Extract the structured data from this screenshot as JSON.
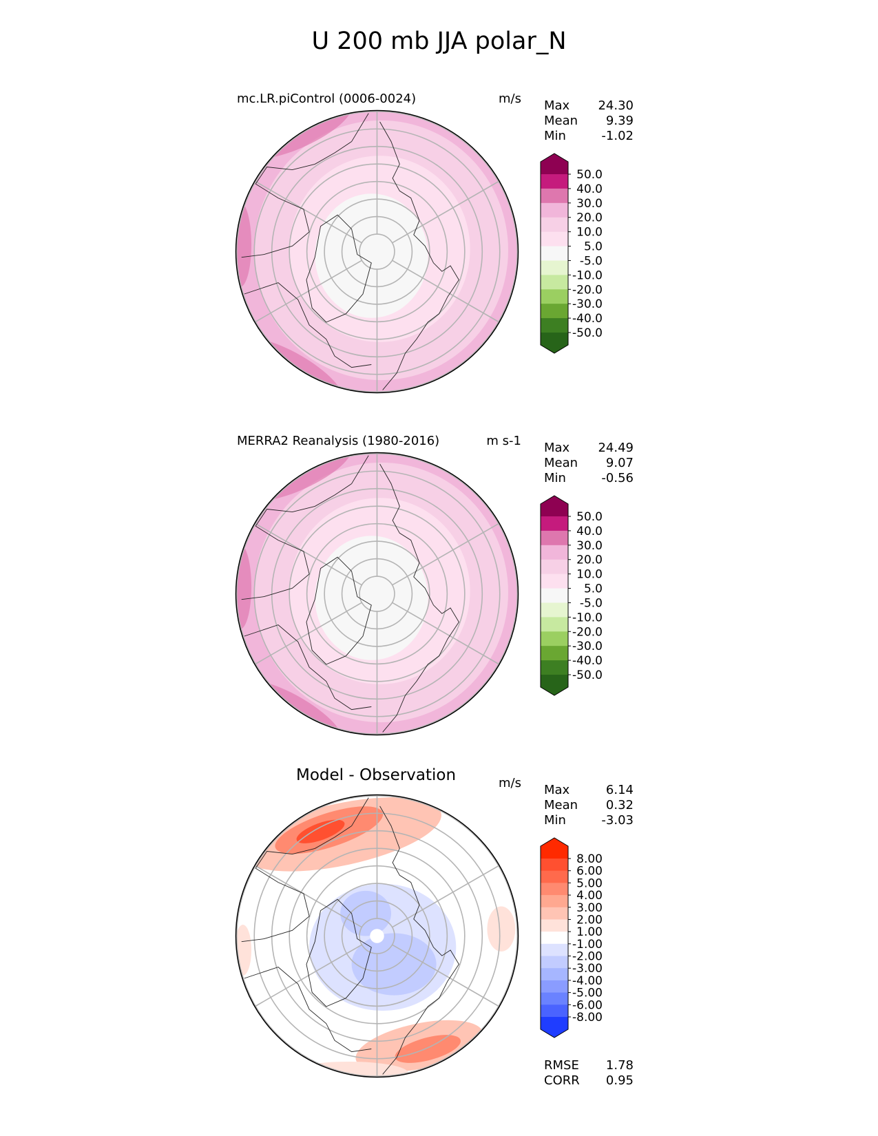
{
  "title": "U 200 mb JJA polar_N",
  "chart_data": [
    {
      "type": "heatmap",
      "projection": "north polar stereographic",
      "title": "mc.LR.piControl (0006-0024)",
      "units": "m/s",
      "stats": {
        "max": "24.30",
        "mean": "9.39",
        "min": "-1.02"
      },
      "colorbar": {
        "levels": [
          "50.0",
          "40.0",
          "30.0",
          "20.0",
          "10.0",
          "5.0",
          "-5.0",
          "-10.0",
          "-20.0",
          "-30.0",
          "-40.0",
          "-50.0"
        ],
        "colors": [
          "#8e0152",
          "#c51b7d",
          "#de77ae",
          "#f1b6da",
          "#f7d0e6",
          "#fde0ef",
          "#f7f7f7",
          "#e6f5d0",
          "#c7e9a0",
          "#9bcf61",
          "#6aa732",
          "#3d7f22",
          "#276419"
        ]
      },
      "map_fill": {
        "outer": "#f1b6da",
        "middle": "#f7d0e6",
        "inner": "#fde0ef",
        "core": "#f7f7f7"
      }
    },
    {
      "type": "heatmap",
      "projection": "north polar stereographic",
      "title": "MERRA2 Reanalysis (1980-2016)",
      "units": "m s-1",
      "stats": {
        "max": "24.49",
        "mean": "9.07",
        "min": "-0.56"
      },
      "colorbar": {
        "levels": [
          "50.0",
          "40.0",
          "30.0",
          "20.0",
          "10.0",
          "5.0",
          "-5.0",
          "-10.0",
          "-20.0",
          "-30.0",
          "-40.0",
          "-50.0"
        ],
        "colors": [
          "#8e0152",
          "#c51b7d",
          "#de77ae",
          "#f1b6da",
          "#f7d0e6",
          "#fde0ef",
          "#f7f7f7",
          "#e6f5d0",
          "#c7e9a0",
          "#9bcf61",
          "#6aa732",
          "#3d7f22",
          "#276419"
        ]
      },
      "map_fill": {
        "outer": "#f1b6da",
        "middle": "#f7d0e6",
        "inner": "#fde0ef",
        "core": "#f7f7f7"
      }
    },
    {
      "type": "heatmap",
      "projection": "north polar stereographic",
      "title": "Model - Observation",
      "units": "m/s",
      "stats": {
        "max": "6.14",
        "mean": "0.32",
        "min": "-3.03"
      },
      "colorbar": {
        "levels": [
          "8.00",
          "6.00",
          "5.00",
          "4.00",
          "3.00",
          "2.00",
          "1.00",
          "-1.00",
          "-2.00",
          "-3.00",
          "-4.00",
          "-5.00",
          "-6.00",
          "-8.00"
        ],
        "colors": [
          "#ff2a00",
          "#ff5030",
          "#ff6a4c",
          "#ff8a70",
          "#ffa890",
          "#ffc4b4",
          "#ffe2da",
          "#ffffff",
          "#dde2ff",
          "#c2ccff",
          "#a6b6ff",
          "#8a9cff",
          "#6a82ff",
          "#4a63ff",
          "#1f3dff"
        ]
      },
      "metrics": {
        "rmse": "1.78",
        "corr": "0.95"
      }
    }
  ],
  "labels": {
    "max": "Max",
    "mean": "Mean",
    "min": "Min",
    "rmse": "RMSE",
    "corr": "CORR"
  }
}
